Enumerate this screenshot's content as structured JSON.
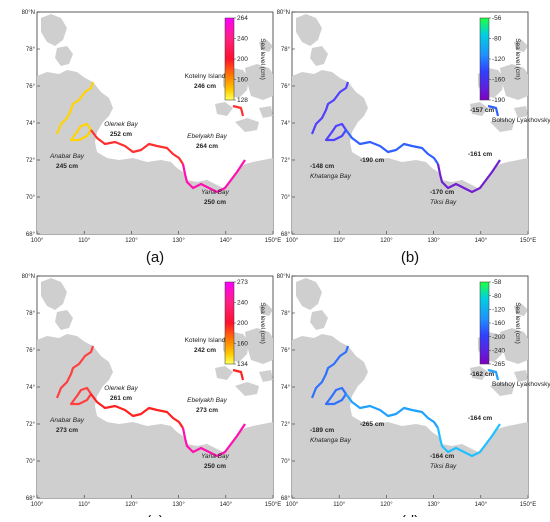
{
  "panels": [
    {
      "caption": "(a)",
      "colorbar": {
        "title": "Sea level (cm)",
        "ticks": [
          "264",
          "240",
          "200",
          "160",
          "128"
        ],
        "colors": [
          "#ff00ff",
          "#ff2080",
          "#ff1030",
          "#ff7a00",
          "#ffcc00",
          "#ffff60"
        ]
      },
      "labels": [
        {
          "place": "Kotelny Island",
          "value": "246 cm"
        },
        {
          "place": "Olenek Bay",
          "value": "252 cm"
        },
        {
          "place": "Ebelyakh Bay",
          "value": "264 cm"
        },
        {
          "place": "Anabar Bay",
          "value": "245 cm"
        },
        {
          "place": "Yana Bay",
          "value": "250 cm"
        }
      ],
      "coast_colors": {
        "west": "#ffd400",
        "mid": "#ff3030",
        "east": "#ff10b0"
      }
    },
    {
      "caption": "(b)",
      "colorbar": {
        "title": "Sea level (cm)",
        "ticks": [
          "-56",
          "-80",
          "-120",
          "-160",
          "-190"
        ],
        "colors": [
          "#20ff40",
          "#00d0e0",
          "#2090ff",
          "#3040ff",
          "#6020e0",
          "#8000c0"
        ]
      },
      "labels": [
        {
          "place": "Bolshoy Lyakhovsky Island",
          "value": "-157 cm"
        },
        {
          "place": "",
          "value": "-161 cm"
        },
        {
          "place": "Khatanga Bay",
          "value": "-148 cm"
        },
        {
          "place": "",
          "value": "-190 cm"
        },
        {
          "place": "Tiksi Bay",
          "value": "-170 cm"
        }
      ],
      "coast_colors": {
        "west": "#5040ff",
        "mid": "#3060ff",
        "east": "#7020d0"
      }
    },
    {
      "caption": "(c)",
      "colorbar": {
        "title": "Sea level (cm)",
        "ticks": [
          "273",
          "240",
          "200",
          "160",
          "134"
        ],
        "colors": [
          "#ff00ff",
          "#ff2080",
          "#ff1030",
          "#ff7a00",
          "#ffcc00",
          "#ffff60"
        ]
      },
      "labels": [
        {
          "place": "Kotelny Island",
          "value": "242 cm"
        },
        {
          "place": "Olenek Bay",
          "value": "261 cm"
        },
        {
          "place": "Ebelyakh Bay",
          "value": "273 cm"
        },
        {
          "place": "Anabar Bay",
          "value": "273 cm"
        },
        {
          "place": "Yana Bay",
          "value": "250 cm"
        }
      ],
      "coast_colors": {
        "west": "#ff4040",
        "mid": "#ff2020",
        "east": "#ff10b0"
      }
    },
    {
      "caption": "(d)",
      "colorbar": {
        "title": "Sea level (cm)",
        "ticks": [
          "-58",
          "-80",
          "-120",
          "-160",
          "-200",
          "-240",
          "-265"
        ],
        "colors": [
          "#20ff40",
          "#00d0e0",
          "#2090ff",
          "#3040ff",
          "#6020e0",
          "#8000c0"
        ]
      },
      "labels": [
        {
          "place": "Bolshoy Lyakhovsky Island",
          "value": "-162 cm"
        },
        {
          "place": "",
          "value": "-164 cm"
        },
        {
          "place": "Khatanga Bay",
          "value": "-189 cm"
        },
        {
          "place": "",
          "value": "-265 cm"
        },
        {
          "place": "Tiksi Bay",
          "value": "-164 cm"
        }
      ],
      "coast_colors": {
        "west": "#3070ff",
        "mid": "#20a0ff",
        "east": "#20c0ff"
      }
    }
  ],
  "axes": {
    "lat_ticks": [
      "80°N",
      "78°",
      "76°",
      "74°",
      "72°",
      "70°",
      "68°"
    ],
    "lon_ticks": [
      "100°",
      "110°",
      "120°",
      "130°",
      "140°",
      "150°E"
    ]
  }
}
